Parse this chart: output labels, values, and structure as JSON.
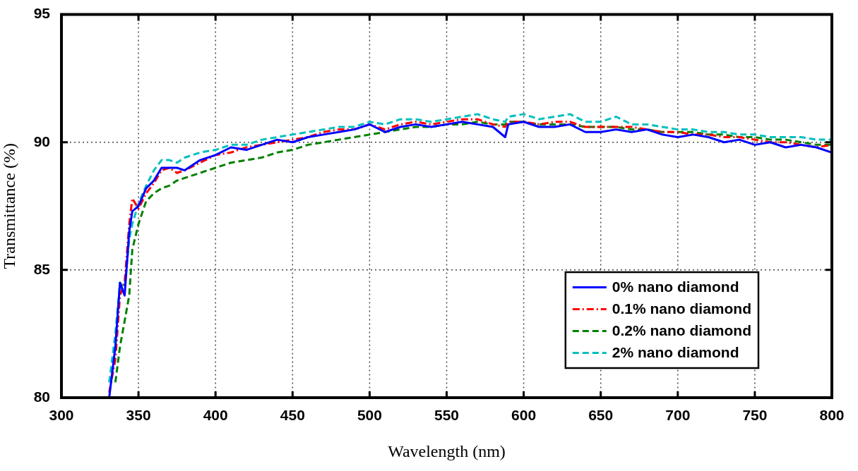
{
  "chart_data": {
    "type": "line",
    "xlabel": "Wavelength (nm)",
    "ylabel": "Transmittance (%)",
    "x": [
      331,
      335,
      338,
      341,
      344,
      346,
      350,
      355,
      360,
      365,
      370,
      375,
      380,
      390,
      400,
      410,
      420,
      430,
      440,
      450,
      460,
      470,
      480,
      490,
      500,
      510,
      520,
      530,
      540,
      550,
      560,
      570,
      580,
      588,
      590,
      600,
      610,
      620,
      630,
      640,
      650,
      660,
      670,
      680,
      690,
      700,
      710,
      720,
      730,
      740,
      750,
      760,
      770,
      780,
      790,
      800
    ],
    "series": [
      {
        "name": "0% nano diamond",
        "color": "#0000ff",
        "line_style": "solid",
        "values": [
          80,
          82,
          84.5,
          84,
          86.5,
          87.3,
          87.5,
          88.2,
          88.5,
          89.0,
          89.0,
          89.0,
          88.9,
          89.3,
          89.5,
          89.8,
          89.7,
          89.9,
          90.1,
          90.0,
          90.2,
          90.3,
          90.4,
          90.5,
          90.7,
          90.4,
          90.6,
          90.7,
          90.6,
          90.7,
          90.8,
          90.7,
          90.6,
          90.2,
          90.7,
          90.8,
          90.6,
          90.6,
          90.7,
          90.4,
          90.4,
          90.5,
          90.4,
          90.5,
          90.3,
          90.2,
          90.3,
          90.2,
          90.0,
          90.1,
          89.9,
          90.0,
          89.8,
          89.9,
          89.8,
          89.6
        ]
      },
      {
        "name": "0.1% nano diamond",
        "color": "#ff0000",
        "line_style": "dashdot",
        "values": [
          80.2,
          81.5,
          84,
          84.5,
          86.8,
          87.8,
          87.4,
          88.0,
          88.4,
          88.9,
          89.0,
          88.8,
          88.9,
          89.2,
          89.5,
          89.6,
          89.8,
          89.9,
          90.0,
          90.1,
          90.2,
          90.4,
          90.5,
          90.5,
          90.7,
          90.5,
          90.7,
          90.8,
          90.7,
          90.8,
          90.9,
          90.9,
          90.7,
          90.6,
          90.8,
          90.8,
          90.7,
          90.8,
          90.8,
          90.6,
          90.6,
          90.6,
          90.6,
          90.5,
          90.4,
          90.4,
          90.3,
          90.3,
          90.2,
          90.2,
          90.1,
          90.0,
          90.0,
          89.9,
          89.8,
          89.9
        ]
      },
      {
        "name": "0.2% nano diamond",
        "color": "#008000",
        "line_style": "dashed",
        "values": [
          null,
          80.6,
          82,
          83,
          84,
          85.8,
          86.8,
          87.7,
          88.0,
          88.2,
          88.3,
          88.5,
          88.6,
          88.8,
          89.0,
          89.2,
          89.3,
          89.4,
          89.6,
          89.7,
          89.9,
          90.0,
          90.1,
          90.2,
          90.3,
          90.4,
          90.5,
          90.6,
          90.6,
          90.7,
          90.7,
          90.8,
          90.7,
          90.7,
          90.8,
          90.8,
          90.7,
          90.7,
          90.7,
          90.6,
          90.6,
          90.6,
          90.5,
          90.5,
          90.4,
          90.4,
          90.4,
          90.3,
          90.3,
          90.2,
          90.2,
          90.1,
          90.1,
          90.0,
          89.9,
          89.9
        ]
      },
      {
        "name": "2% nano diamond",
        "color": "#00bfbf",
        "line_style": "dashed",
        "values": [
          80.6,
          82.5,
          84.5,
          84.3,
          86.2,
          86.8,
          87.6,
          88.3,
          88.9,
          89.3,
          89.3,
          89.2,
          89.4,
          89.6,
          89.7,
          89.9,
          89.9,
          90.1,
          90.2,
          90.3,
          90.4,
          90.5,
          90.6,
          90.6,
          90.8,
          90.7,
          90.9,
          90.9,
          90.8,
          90.9,
          91.0,
          91.1,
          90.9,
          90.8,
          91.0,
          91.1,
          90.9,
          91.0,
          91.1,
          90.8,
          90.8,
          91.0,
          90.7,
          90.7,
          90.6,
          90.5,
          90.5,
          90.4,
          90.4,
          90.3,
          90.3,
          90.2,
          90.2,
          90.2,
          90.1,
          90.1
        ]
      }
    ],
    "xlim": [
      300,
      800
    ],
    "xticks": [
      300,
      350,
      400,
      450,
      500,
      550,
      600,
      650,
      700,
      750,
      800
    ],
    "ylim": [
      80,
      95
    ],
    "yticks": [
      80,
      85,
      90,
      95
    ],
    "grid": true,
    "legend": "bottom right"
  }
}
